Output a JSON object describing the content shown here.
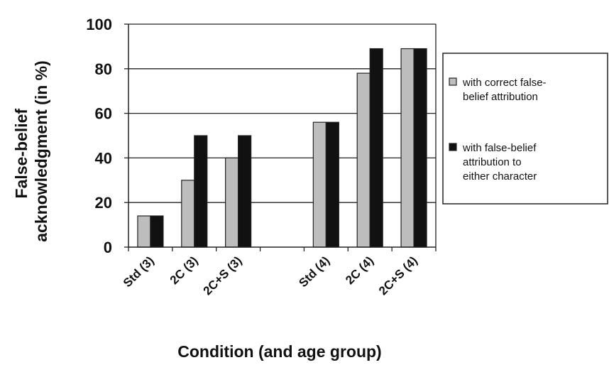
{
  "chart_data": {
    "type": "bar",
    "categories": [
      "Std (3)",
      "2C (3)",
      "2C+S (3)",
      "Std (4)",
      "2C (4)",
      "2C+S (4)"
    ],
    "series": [
      {
        "name": "with correct false-belief attribution",
        "legend_lines": [
          "with correct false-",
          "belief attribution"
        ],
        "color": "#bdbdbd",
        "values": [
          14,
          30,
          40,
          56,
          78,
          89
        ]
      },
      {
        "name": "with false-belief attribution to either character",
        "legend_lines": [
          "with false-belief",
          "attribution to",
          "either character"
        ],
        "color": "#111111",
        "values": [
          14,
          50,
          50,
          56,
          89,
          89
        ]
      }
    ],
    "ylim": [
      0,
      100
    ],
    "yticks": [
      "0",
      "20",
      "40",
      "60",
      "80",
      "100"
    ],
    "ylabel_lines": [
      "False-belief",
      "acknowledgment (in %)"
    ],
    "xlabel": "Condition (and age group)",
    "grid": true,
    "legend_position": "right"
  }
}
